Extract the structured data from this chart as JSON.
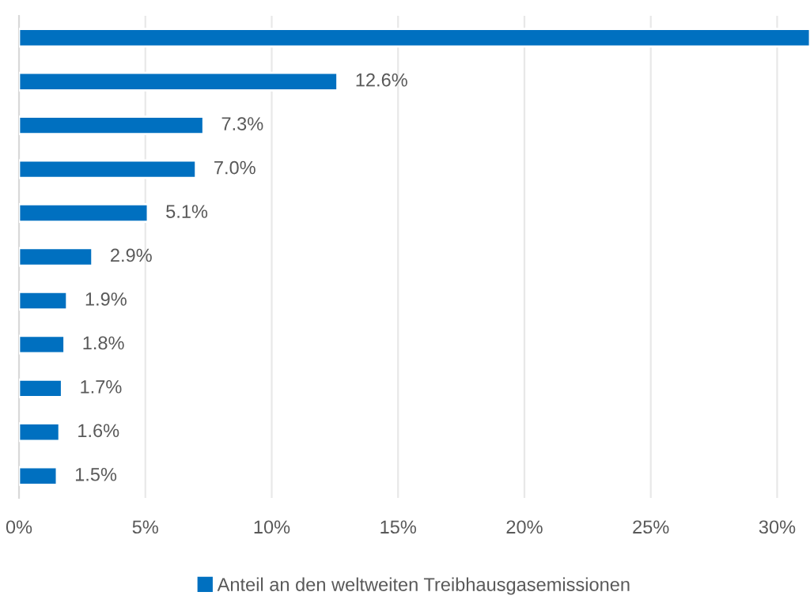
{
  "chart_data": {
    "type": "bar",
    "orientation": "horizontal",
    "categories": [
      null,
      null,
      null,
      null,
      null,
      null,
      null,
      null,
      null,
      null,
      null
    ],
    "series": [
      {
        "name": "Anteil an den weltweiten Treibhausgasemissionen",
        "color": "#0070c0",
        "values": [
          31.3,
          12.6,
          7.3,
          7.0,
          5.1,
          2.9,
          1.9,
          1.8,
          1.7,
          1.6,
          1.5
        ],
        "value_labels": [
          null,
          "12.6%",
          "7.3%",
          "7.0%",
          "5.1%",
          "2.9%",
          "1.9%",
          "1.8%",
          "1.7%",
          "1.6%",
          "1.5%"
        ]
      }
    ],
    "xlim": [
      0,
      31.3
    ],
    "xticks": [
      {
        "value": 0,
        "label": "0%"
      },
      {
        "value": 5,
        "label": "5%"
      },
      {
        "value": 10,
        "label": "10%"
      },
      {
        "value": 15,
        "label": "15%"
      },
      {
        "value": 20,
        "label": "20%"
      },
      {
        "value": 25,
        "label": "25%"
      },
      {
        "value": 30,
        "label": "30%"
      }
    ],
    "grid": "x",
    "legend": "bottom"
  }
}
